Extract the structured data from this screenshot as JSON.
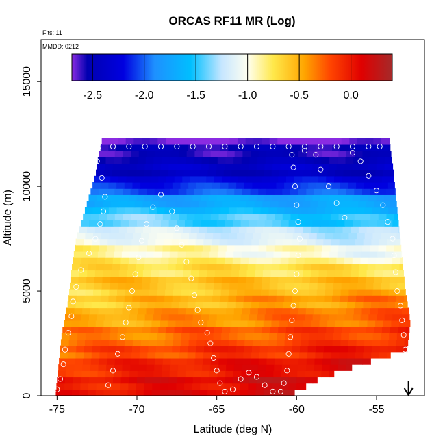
{
  "chart_data": {
    "type": "heatmap",
    "title": "ORCAS RF11 MR (Log)",
    "annotations": {
      "flights": "Flts: 11",
      "date": "MMDD: 0212"
    },
    "xlabel": "Latitude (deg N)",
    "ylabel": "Altitude (m)",
    "xlim": [
      -76,
      -52
    ],
    "ylim": [
      0,
      17000
    ],
    "x_ticks": [
      -75,
      -70,
      -65,
      -60,
      -55
    ],
    "y_ticks": [
      0,
      5000,
      10000,
      15000
    ],
    "colorbar": {
      "range": [
        -2.7,
        0.4
      ],
      "ticks": [
        -2.5,
        -2.0,
        -1.5,
        -1.0,
        -0.5,
        0.0
      ],
      "tick_labels": [
        "-2.5",
        "-2.0",
        "-1.5",
        "-1.0",
        "-0.5",
        "0.0"
      ],
      "stops": [
        {
          "v": -2.7,
          "c": "#8a2be2"
        },
        {
          "v": -2.55,
          "c": "#0000b0"
        },
        {
          "v": -2.2,
          "c": "#0000e0"
        },
        {
          "v": -1.9,
          "c": "#1e90ff"
        },
        {
          "v": -1.55,
          "c": "#00bfff"
        },
        {
          "v": -1.25,
          "c": "#c6e6ff"
        },
        {
          "v": -1.0,
          "c": "#fffff0"
        },
        {
          "v": -0.75,
          "c": "#ffe84a"
        },
        {
          "v": -0.45,
          "c": "#ffa500"
        },
        {
          "v": -0.2,
          "c": "#ff4500"
        },
        {
          "v": 0.1,
          "c": "#e00000"
        },
        {
          "v": 0.4,
          "c": "#a52a2a"
        }
      ]
    },
    "field": {
      "altitude_profile": [
        {
          "alt": 0,
          "v": 0.2
        },
        {
          "alt": 1500,
          "v": 0.05
        },
        {
          "alt": 2500,
          "v": -0.15
        },
        {
          "alt": 3500,
          "v": -0.3
        },
        {
          "alt": 4500,
          "v": -0.45
        },
        {
          "alt": 5500,
          "v": -0.6
        },
        {
          "alt": 6500,
          "v": -0.8
        },
        {
          "alt": 7500,
          "v": -1.05
        },
        {
          "alt": 8200,
          "v": -1.3
        },
        {
          "alt": 9000,
          "v": -1.6
        },
        {
          "alt": 9800,
          "v": -2.0
        },
        {
          "alt": 10500,
          "v": -2.35
        },
        {
          "alt": 11200,
          "v": -2.45
        },
        {
          "alt": 12100,
          "v": -2.65
        }
      ],
      "left_boundary": [
        {
          "alt": 0,
          "lat": -75.1
        },
        {
          "alt": 1500,
          "lat": -74.9
        },
        {
          "alt": 3000,
          "lat": -74.7
        },
        {
          "alt": 4500,
          "lat": -74.3
        },
        {
          "alt": 6000,
          "lat": -74.1
        },
        {
          "alt": 7500,
          "lat": -73.8
        },
        {
          "alt": 8500,
          "lat": -73.4
        },
        {
          "alt": 9500,
          "lat": -73.0
        },
        {
          "alt": 10500,
          "lat": -72.6
        },
        {
          "alt": 11500,
          "lat": -72.4
        },
        {
          "alt": 12100,
          "lat": -72.2
        }
      ],
      "right_boundary": [
        {
          "alt": 0,
          "lat": -60.5
        },
        {
          "alt": 800,
          "lat": -58.6
        },
        {
          "alt": 1500,
          "lat": -56.0
        },
        {
          "alt": 2200,
          "lat": -53.1
        },
        {
          "alt": 3500,
          "lat": -52.9
        },
        {
          "alt": 5000,
          "lat": -53.2
        },
        {
          "alt": 6500,
          "lat": -53.4
        },
        {
          "alt": 8000,
          "lat": -53.6
        },
        {
          "alt": 9500,
          "lat": -53.8
        },
        {
          "alt": 11000,
          "lat": -54.0
        },
        {
          "alt": 12100,
          "lat": -54.2
        }
      ]
    },
    "flight_track": [
      [
        -75.0,
        300
      ],
      [
        -74.8,
        800
      ],
      [
        -74.6,
        1500
      ],
      [
        -74.5,
        2200
      ],
      [
        -74.3,
        3000
      ],
      [
        -74.1,
        3800
      ],
      [
        -74.0,
        4500
      ],
      [
        -73.8,
        5200
      ],
      [
        -73.5,
        6000
      ],
      [
        -73.0,
        6800
      ],
      [
        -72.6,
        7500
      ],
      [
        -72.3,
        8200
      ],
      [
        -72.1,
        8800
      ],
      [
        -72.0,
        9500
      ],
      [
        -72.2,
        10400
      ],
      [
        -72.5,
        11200
      ],
      [
        -72.4,
        11900
      ],
      [
        -71.5,
        11900
      ],
      [
        -70.5,
        11900
      ],
      [
        -69.5,
        11900
      ],
      [
        -68.5,
        11900
      ],
      [
        -67.5,
        11900
      ],
      [
        -66.5,
        11900
      ],
      [
        -65.5,
        11900
      ],
      [
        -64.5,
        11900
      ],
      [
        -63.5,
        11900
      ],
      [
        -62.5,
        11900
      ],
      [
        -61.5,
        11900
      ],
      [
        -60.5,
        11900
      ],
      [
        -59.5,
        11900
      ],
      [
        -58.5,
        11900
      ],
      [
        -57.5,
        11900
      ],
      [
        -56.5,
        11900
      ],
      [
        -55.5,
        11900
      ],
      [
        -54.8,
        11900
      ],
      [
        -71.8,
        500
      ],
      [
        -71.5,
        1200
      ],
      [
        -71.2,
        2000
      ],
      [
        -70.9,
        2800
      ],
      [
        -70.7,
        3500
      ],
      [
        -70.5,
        4200
      ],
      [
        -70.3,
        5000
      ],
      [
        -70.1,
        5800
      ],
      [
        -69.9,
        6600
      ],
      [
        -69.7,
        7400
      ],
      [
        -69.4,
        8200
      ],
      [
        -69.0,
        9000
      ],
      [
        -68.5,
        9600
      ],
      [
        -67.8,
        8800
      ],
      [
        -67.5,
        8000
      ],
      [
        -67.2,
        7200
      ],
      [
        -66.9,
        6400
      ],
      [
        -66.6,
        5600
      ],
      [
        -66.4,
        4800
      ],
      [
        -66.2,
        4100
      ],
      [
        -66.0,
        3500
      ],
      [
        -65.6,
        3000
      ],
      [
        -65.4,
        2500
      ],
      [
        -65.2,
        1800
      ],
      [
        -65.0,
        1200
      ],
      [
        -64.8,
        600
      ],
      [
        -64.5,
        200
      ],
      [
        -64.0,
        300
      ],
      [
        -63.5,
        800
      ],
      [
        -63.0,
        1100
      ],
      [
        -62.5,
        900
      ],
      [
        -62.0,
        500
      ],
      [
        -61.5,
        200
      ],
      [
        -61.0,
        200
      ],
      [
        -60.8,
        600
      ],
      [
        -60.6,
        1200
      ],
      [
        -60.5,
        2000
      ],
      [
        -60.4,
        2800
      ],
      [
        -60.3,
        3600
      ],
      [
        -60.2,
        4300
      ],
      [
        -60.1,
        5000
      ],
      [
        -60.0,
        5800
      ],
      [
        -59.9,
        6700
      ],
      [
        -59.8,
        7500
      ],
      [
        -59.9,
        8300
      ],
      [
        -60.0,
        9100
      ],
      [
        -60.1,
        10000
      ],
      [
        -60.2,
        10900
      ],
      [
        -60.3,
        11500
      ],
      [
        -59.5,
        11700
      ],
      [
        -58.8,
        11500
      ],
      [
        -58.5,
        10800
      ],
      [
        -58.0,
        10000
      ],
      [
        -57.5,
        9200
      ],
      [
        -57.0,
        8500
      ],
      [
        -56.5,
        11600
      ],
      [
        -56.0,
        11200
      ],
      [
        -55.5,
        10500
      ],
      [
        -55.0,
        9800
      ],
      [
        -54.6,
        9100
      ],
      [
        -54.3,
        8300
      ],
      [
        -54.0,
        7500
      ],
      [
        -53.9,
        6700
      ],
      [
        -53.8,
        5900
      ],
      [
        -53.7,
        5000
      ],
      [
        -53.5,
        4300
      ],
      [
        -53.4,
        3600
      ],
      [
        -53.3,
        2900
      ],
      [
        -53.2,
        2200
      ]
    ],
    "marker": {
      "type": "arrow",
      "lat": -53.0,
      "direction": "down"
    }
  }
}
